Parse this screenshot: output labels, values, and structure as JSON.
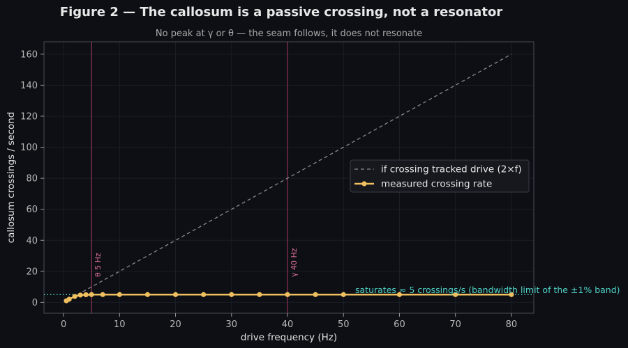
{
  "chart_data": {
    "type": "line",
    "title": "Figure 2 — The callosum is a passive crossing, not a resonator",
    "subtitle": "No peak at γ or θ — the seam follows, it does not resonate",
    "xlabel": "drive frequency (Hz)",
    "ylabel": "callosum crossings / second",
    "xlim": [
      -3.5,
      84
    ],
    "ylim": [
      -7,
      168
    ],
    "xticks": [
      0,
      10,
      20,
      30,
      40,
      50,
      60,
      70,
      80
    ],
    "yticks": [
      0,
      20,
      40,
      60,
      80,
      100,
      120,
      140,
      160
    ],
    "grid": true,
    "legend_position": "center-right",
    "series": [
      {
        "name": "if crossing tracked drive (2×f)",
        "style": "dashed",
        "color": "#8a8a8a",
        "x": [
          0.5,
          80
        ],
        "y": [
          1,
          160
        ]
      },
      {
        "name": "measured crossing rate",
        "style": "line-marker",
        "color": "#f0c060",
        "x": [
          0.5,
          1,
          2,
          3,
          4,
          5,
          7,
          10,
          15,
          20,
          25,
          30,
          35,
          40,
          45,
          50,
          60,
          70,
          80
        ],
        "y": [
          1,
          2,
          3.8,
          4.7,
          4.9,
          5,
          5,
          5,
          5,
          5,
          5,
          5,
          5,
          5,
          5,
          5,
          5,
          5,
          5
        ]
      }
    ],
    "vlines": [
      {
        "x": 5,
        "label": "θ 5 Hz",
        "color": "#c0406e"
      },
      {
        "x": 40,
        "label": "γ 40 Hz",
        "color": "#c0406e"
      }
    ],
    "hline": {
      "y": 5,
      "label": "saturates ≈ 5 crossings/s (bandwidth limit of the ±1% band)",
      "color": "#4fd1c5"
    },
    "colors": {
      "background": "#0d0f14",
      "plot_background": "#0d0f14",
      "frame": "#4a4d57",
      "grid": "#1b1e25"
    }
  }
}
